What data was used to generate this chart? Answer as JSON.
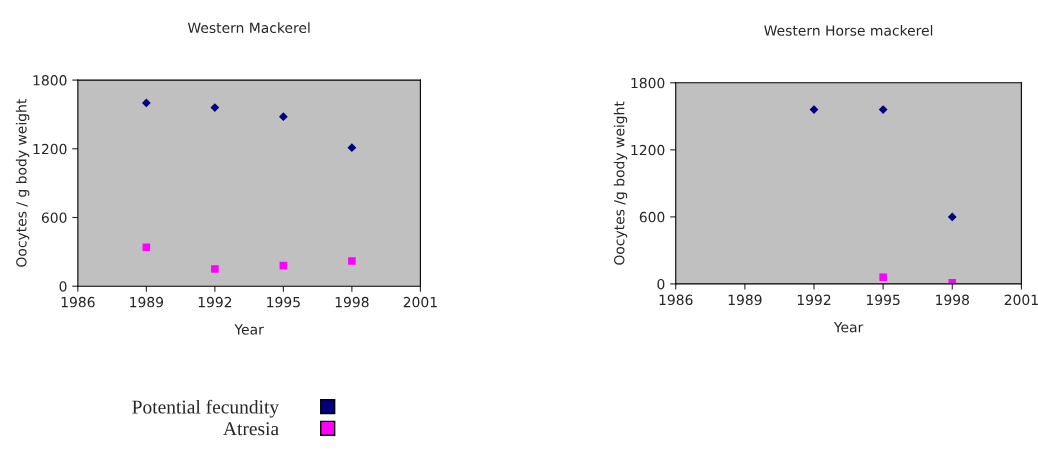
{
  "chart_data": [
    {
      "type": "scatter",
      "title": "Western Mackerel",
      "xlabel": "Year",
      "ylabel": "Oocytes / g body weight",
      "x": [
        1989,
        1992,
        1995,
        1998
      ],
      "xlim": [
        1986,
        2001
      ],
      "xticks": [
        1986,
        1989,
        1992,
        1995,
        1998,
        2001
      ],
      "ylim": [
        0,
        1800
      ],
      "yticks": [
        0,
        600,
        1200,
        1800
      ],
      "grid": false,
      "legend": "bottom",
      "series": [
        {
          "name": "Potential fecundity",
          "color": "#000080",
          "marker": "diamond",
          "values": [
            1600,
            1560,
            1480,
            1210
          ]
        },
        {
          "name": "Atresia",
          "color": "#ff00ff",
          "marker": "square",
          "values": [
            340,
            150,
            180,
            220
          ]
        }
      ]
    },
    {
      "type": "scatter",
      "title": "Western Horse mackerel",
      "xlabel": "Year",
      "ylabel": "Oocytes /g body weight",
      "x": [
        1992,
        1995,
        1998
      ],
      "xlim": [
        1986,
        2001
      ],
      "xticks": [
        1986,
        1989,
        1992,
        1995,
        1998,
        2001
      ],
      "ylim": [
        0,
        1800
      ],
      "yticks": [
        0,
        600,
        1200,
        1800
      ],
      "grid": false,
      "series": [
        {
          "color": "#000080",
          "marker": "diamond",
          "values": [
            1560,
            1560,
            600
          ]
        },
        {
          "color": "#ff00ff",
          "marker": "square",
          "x": [
            1995,
            1998
          ],
          "values": [
            60,
            10
          ]
        }
      ]
    }
  ]
}
